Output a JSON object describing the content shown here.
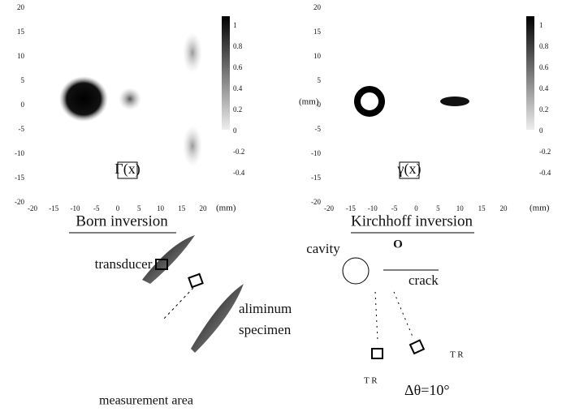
{
  "panels": [
    {
      "yticks": [
        20,
        15,
        10,
        5,
        0,
        -5,
        -10,
        -15,
        -20
      ],
      "xticks": [
        -20,
        -15,
        -10,
        -5,
        0,
        5,
        10,
        15,
        20
      ],
      "colorbar_ticks": [
        1,
        0.8,
        0.6,
        0.4,
        0.2,
        0,
        -0.2,
        -0.4
      ],
      "x_unit": "(mm)",
      "function_label": "Γ(x)",
      "caption": "Born inversion"
    },
    {
      "yticks": [
        20,
        15,
        10,
        5,
        0,
        -5,
        -10,
        -15,
        -20
      ],
      "xticks": [
        -20,
        -15,
        -10,
        -5,
        0,
        5,
        10,
        15,
        20
      ],
      "colorbar_ticks": [
        1,
        0.8,
        0.6,
        0.4,
        0.2,
        0,
        -0.2,
        -0.4
      ],
      "y_unit": "(mm)",
      "x_unit": "(mm)",
      "function_label": "γ(x)",
      "caption": "Kirchhoff inversion"
    }
  ],
  "setup_left": {
    "transducer": "transducer",
    "specimen_line1": "aliminum",
    "specimen_line2": "specimen",
    "caption": "measurement area"
  },
  "setup_right": {
    "cavity": "cavity",
    "origin": "O",
    "crack": "crack",
    "tr_right": "T R",
    "tr_left": "T R",
    "angle": "Δθ=10°"
  }
}
